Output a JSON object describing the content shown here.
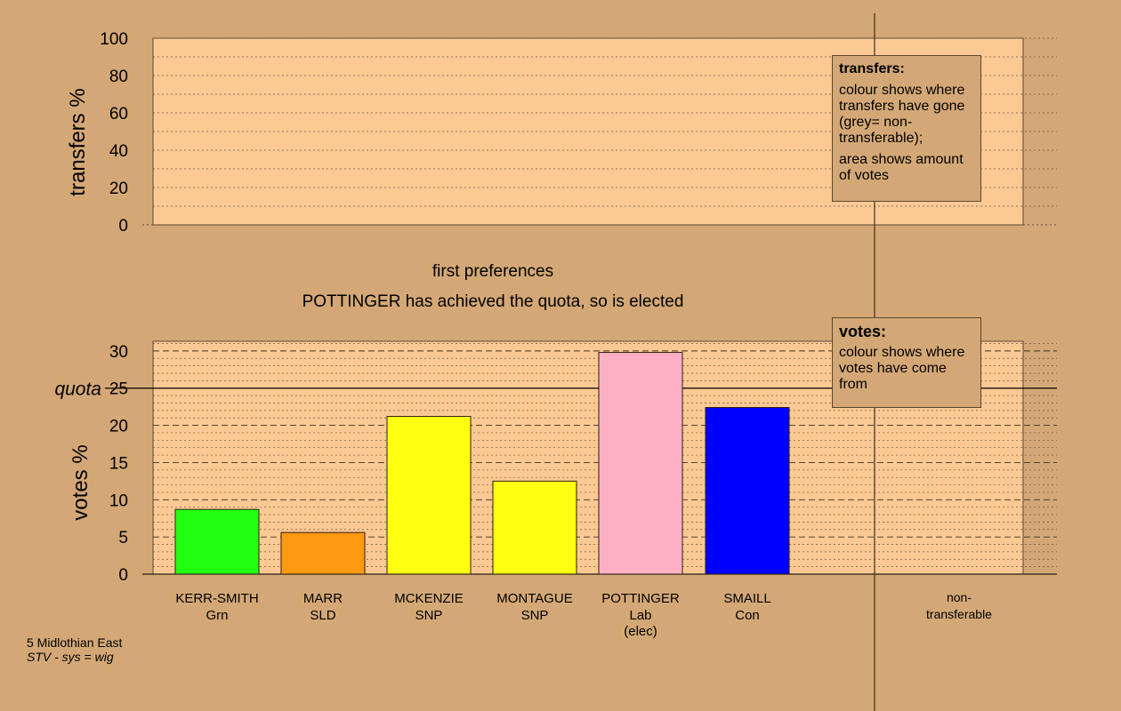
{
  "top_panel": {
    "ylabel": "transfers %",
    "yticks": [
      "0",
      "20",
      "40",
      "60",
      "80",
      "100"
    ]
  },
  "captions": {
    "stage": "first preferences",
    "status": "POTTINGER has achieved the quota, so is elected"
  },
  "legend_transfers": {
    "title": "transfers:",
    "p1": "colour shows where transfers have gone (grey= non-transferable);",
    "p2": "area shows amount of votes"
  },
  "legend_votes": {
    "title": "votes:",
    "p1": "colour shows where votes have come from"
  },
  "quota_label": "quota",
  "footer": {
    "constituency": "5 Midlothian East",
    "system": "STV - sys = wig"
  },
  "colors": {
    "background": "#d4a876",
    "panel": "#fcc994"
  },
  "chart_data": [
    {
      "type": "bar",
      "panel": "transfers",
      "ylabel": "transfers %",
      "ylim": [
        0,
        100
      ],
      "yticks": [
        0,
        20,
        40,
        60,
        80,
        100
      ],
      "grid": true,
      "categories": [],
      "values": []
    },
    {
      "type": "bar",
      "panel": "votes",
      "title": "first preferences",
      "ylabel": "votes %",
      "ylim": [
        0,
        31.3
      ],
      "yticks": [
        "0",
        "5",
        "10",
        "15",
        "20",
        "25",
        "30"
      ],
      "quota": 25,
      "grid": true,
      "categories": [
        {
          "name": "KERR-SMITH",
          "party": "Grn",
          "note": ""
        },
        {
          "name": "MARR",
          "party": "SLD",
          "note": ""
        },
        {
          "name": "MCKENZIE",
          "party": "SNP",
          "note": ""
        },
        {
          "name": "MONTAGUE",
          "party": "SNP",
          "note": ""
        },
        {
          "name": "POTTINGER",
          "party": "Lab",
          "note": "(elec)"
        },
        {
          "name": "SMAILL",
          "party": "Con",
          "note": ""
        }
      ],
      "values": [
        8.7,
        5.6,
        21.2,
        12.5,
        29.8,
        22.4
      ],
      "bar_colors": [
        "#22ff11",
        "#ff9911",
        "#ffff11",
        "#ffff11",
        "#ffb0c4",
        "#0000ff"
      ],
      "extra_column": {
        "line1": "non-",
        "line2": "transferable"
      }
    }
  ]
}
